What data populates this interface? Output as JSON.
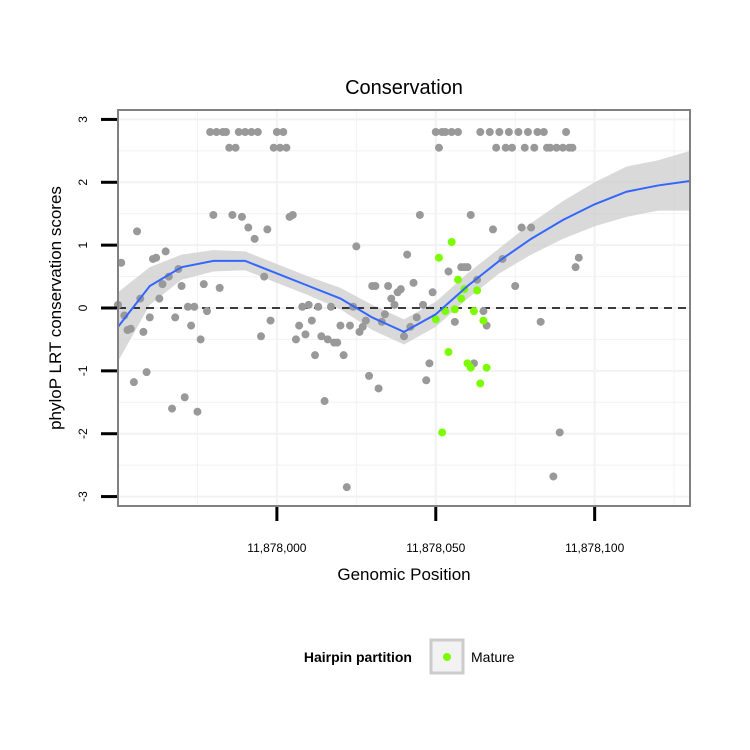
{
  "chart_data": {
    "type": "scatter",
    "title": "Conservation",
    "xlabel": "Genomic Position",
    "ylabel": "phyloP LRT conservation scores",
    "xlim": [
      11877950,
      11878130
    ],
    "ylim": [
      -3.15,
      3.15
    ],
    "x_ticks": [
      {
        "value": 11878000,
        "label": "11,878,000"
      },
      {
        "value": 11878050,
        "label": "11,878,050"
      },
      {
        "value": 11878100,
        "label": "11,878,100"
      }
    ],
    "y_ticks": [
      {
        "value": -3,
        "label": "-3"
      },
      {
        "value": -2,
        "label": "-2"
      },
      {
        "value": -1,
        "label": "-1"
      },
      {
        "value": 0,
        "label": "0"
      },
      {
        "value": 1,
        "label": "1"
      },
      {
        "value": 2,
        "label": "2"
      },
      {
        "value": 3,
        "label": "3"
      }
    ],
    "grid": true,
    "reference_line": {
      "y": 0,
      "style": "dashed",
      "color": "#000000"
    },
    "legend": {
      "title": "Hairpin partition",
      "position": "bottom",
      "entries": [
        {
          "label": "Mature",
          "color": "#7cfc00"
        }
      ]
    },
    "colors": {
      "other": "#999999",
      "mature": "#7cfc00",
      "smooth": "#3366ff",
      "band": "#cccccc"
    },
    "series": [
      {
        "group": "other",
        "points": [
          [
            11877950,
            0.05
          ],
          [
            11877951,
            0.72
          ],
          [
            11877952,
            -0.12
          ],
          [
            11877953,
            -0.35
          ],
          [
            11877954,
            -0.33
          ],
          [
            11877955,
            -1.18
          ],
          [
            11877956,
            1.22
          ],
          [
            11877957,
            0.15
          ],
          [
            11877958,
            -0.38
          ],
          [
            11877959,
            -1.02
          ],
          [
            11877960,
            -0.15
          ],
          [
            11877961,
            0.78
          ],
          [
            11877962,
            0.8
          ],
          [
            11877963,
            0.15
          ],
          [
            11877964,
            0.38
          ],
          [
            11877965,
            0.9
          ],
          [
            11877966,
            0.5
          ],
          [
            11877967,
            -1.6
          ],
          [
            11877968,
            -0.15
          ],
          [
            11877969,
            0.62
          ],
          [
            11877970,
            0.35
          ],
          [
            11877971,
            -1.42
          ],
          [
            11877972,
            0.02
          ],
          [
            11877973,
            -0.28
          ],
          [
            11877974,
            0.02
          ],
          [
            11877975,
            -1.65
          ],
          [
            11877976,
            -0.5
          ],
          [
            11877977,
            0.38
          ],
          [
            11877978,
            -0.05
          ],
          [
            11877979,
            2.8
          ],
          [
            11877980,
            1.48
          ],
          [
            11877981,
            2.8
          ],
          [
            11877982,
            0.32
          ],
          [
            11877983,
            2.8
          ],
          [
            11877984,
            2.8
          ],
          [
            11877985,
            2.55
          ],
          [
            11877986,
            1.48
          ],
          [
            11877987,
            2.55
          ],
          [
            11877988,
            2.8
          ],
          [
            11877989,
            1.45
          ],
          [
            11877990,
            2.8
          ],
          [
            11877991,
            1.28
          ],
          [
            11877992,
            2.8
          ],
          [
            11877993,
            1.1
          ],
          [
            11877994,
            2.8
          ],
          [
            11877995,
            -0.45
          ],
          [
            11877996,
            0.5
          ],
          [
            11877997,
            1.25
          ],
          [
            11877998,
            -0.2
          ],
          [
            11877999,
            2.55
          ],
          [
            11878000,
            2.8
          ],
          [
            11878001,
            2.55
          ],
          [
            11878002,
            2.8
          ],
          [
            11878003,
            2.55
          ],
          [
            11878004,
            1.45
          ],
          [
            11878005,
            1.48
          ],
          [
            11878006,
            -0.5
          ],
          [
            11878007,
            -0.28
          ],
          [
            11878008,
            0.02
          ],
          [
            11878009,
            -0.42
          ],
          [
            11878010,
            0.05
          ],
          [
            11878011,
            -0.2
          ],
          [
            11878012,
            -0.75
          ],
          [
            11878013,
            0.02
          ],
          [
            11878014,
            -0.45
          ],
          [
            11878015,
            -1.48
          ],
          [
            11878016,
            -0.5
          ],
          [
            11878017,
            0.02
          ],
          [
            11878018,
            -0.55
          ],
          [
            11878019,
            -0.55
          ],
          [
            11878020,
            -0.28
          ],
          [
            11878021,
            -0.75
          ],
          [
            11878022,
            -2.85
          ],
          [
            11878023,
            -0.28
          ],
          [
            11878024,
            0.02
          ],
          [
            11878025,
            0.98
          ],
          [
            11878026,
            -0.38
          ],
          [
            11878027,
            -0.3
          ],
          [
            11878028,
            -0.2
          ],
          [
            11878029,
            -1.08
          ],
          [
            11878030,
            0.35
          ],
          [
            11878031,
            0.35
          ],
          [
            11878032,
            -1.28
          ],
          [
            11878033,
            -0.22
          ],
          [
            11878034,
            -0.1
          ],
          [
            11878035,
            0.35
          ],
          [
            11878036,
            0.15
          ],
          [
            11878037,
            0.05
          ],
          [
            11878038,
            0.25
          ],
          [
            11878039,
            0.3
          ],
          [
            11878040,
            -0.45
          ],
          [
            11878041,
            0.85
          ],
          [
            11878042,
            -0.3
          ],
          [
            11878043,
            0.4
          ],
          [
            11878044,
            -0.15
          ],
          [
            11878045,
            1.48
          ],
          [
            11878046,
            0.05
          ],
          [
            11878047,
            -1.15
          ],
          [
            11878048,
            -0.88
          ],
          [
            11878049,
            0.25
          ],
          [
            11878050,
            2.8
          ],
          [
            11878051,
            2.55
          ],
          [
            11878052,
            2.8
          ],
          [
            11878053,
            2.8
          ],
          [
            11878054,
            0.58
          ],
          [
            11878055,
            2.8
          ],
          [
            11878056,
            -0.22
          ],
          [
            11878057,
            2.8
          ],
          [
            11878058,
            0.65
          ],
          [
            11878059,
            0.65
          ],
          [
            11878060,
            0.65
          ],
          [
            11878061,
            1.48
          ],
          [
            11878062,
            -0.88
          ],
          [
            11878063,
            0.45
          ],
          [
            11878064,
            2.8
          ],
          [
            11878065,
            -0.05
          ],
          [
            11878066,
            -0.28
          ],
          [
            11878067,
            2.8
          ],
          [
            11878068,
            1.25
          ],
          [
            11878069,
            2.55
          ],
          [
            11878070,
            2.8
          ],
          [
            11878071,
            0.78
          ],
          [
            11878072,
            2.55
          ],
          [
            11878073,
            2.8
          ],
          [
            11878074,
            2.55
          ],
          [
            11878075,
            0.35
          ],
          [
            11878076,
            2.8
          ],
          [
            11878077,
            1.28
          ],
          [
            11878078,
            2.55
          ],
          [
            11878079,
            2.8
          ],
          [
            11878080,
            1.28
          ],
          [
            11878081,
            2.55
          ],
          [
            11878082,
            2.8
          ],
          [
            11878083,
            -0.22
          ],
          [
            11878084,
            2.8
          ],
          [
            11878085,
            2.55
          ],
          [
            11878086,
            2.55
          ],
          [
            11878087,
            -2.68
          ],
          [
            11878088,
            2.55
          ],
          [
            11878089,
            -1.98
          ],
          [
            11878090,
            2.55
          ],
          [
            11878091,
            2.8
          ],
          [
            11878092,
            2.55
          ],
          [
            11878093,
            2.55
          ],
          [
            11878094,
            0.65
          ],
          [
            11878095,
            0.8
          ]
        ]
      },
      {
        "group": "mature",
        "points": [
          [
            11878050,
            -0.18
          ],
          [
            11878051,
            0.8
          ],
          [
            11878052,
            -1.98
          ],
          [
            11878053,
            -0.05
          ],
          [
            11878054,
            -0.7
          ],
          [
            11878055,
            1.05
          ],
          [
            11878056,
            -0.02
          ],
          [
            11878057,
            0.45
          ],
          [
            11878058,
            0.15
          ],
          [
            11878059,
            0.3
          ],
          [
            11878060,
            -0.88
          ],
          [
            11878061,
            -0.95
          ],
          [
            11878062,
            -0.05
          ],
          [
            11878063,
            0.28
          ],
          [
            11878064,
            -1.2
          ],
          [
            11878065,
            -0.2
          ],
          [
            11878066,
            -0.95
          ]
        ]
      }
    ],
    "smooth": {
      "x": [
        11877950,
        11877960,
        11877970,
        11877980,
        11877990,
        11878000,
        11878010,
        11878020,
        11878030,
        11878040,
        11878050,
        11878060,
        11878070,
        11878080,
        11878090,
        11878100,
        11878110,
        11878120,
        11878130
      ],
      "y": [
        -0.3,
        0.35,
        0.65,
        0.75,
        0.75,
        0.55,
        0.35,
        0.15,
        -0.15,
        -0.38,
        -0.1,
        0.35,
        0.75,
        1.1,
        1.4,
        1.65,
        1.85,
        1.95,
        2.02
      ],
      "lower": [
        -0.85,
        0.05,
        0.45,
        0.58,
        0.6,
        0.4,
        0.2,
        -0.02,
        -0.35,
        -0.58,
        -0.3,
        0.15,
        0.55,
        0.85,
        1.1,
        1.3,
        1.45,
        1.55,
        1.55
      ],
      "upper": [
        0.25,
        0.65,
        0.85,
        0.92,
        0.9,
        0.7,
        0.5,
        0.32,
        0.05,
        -0.18,
        0.1,
        0.55,
        0.95,
        1.35,
        1.7,
        2.0,
        2.25,
        2.35,
        2.5
      ]
    }
  }
}
